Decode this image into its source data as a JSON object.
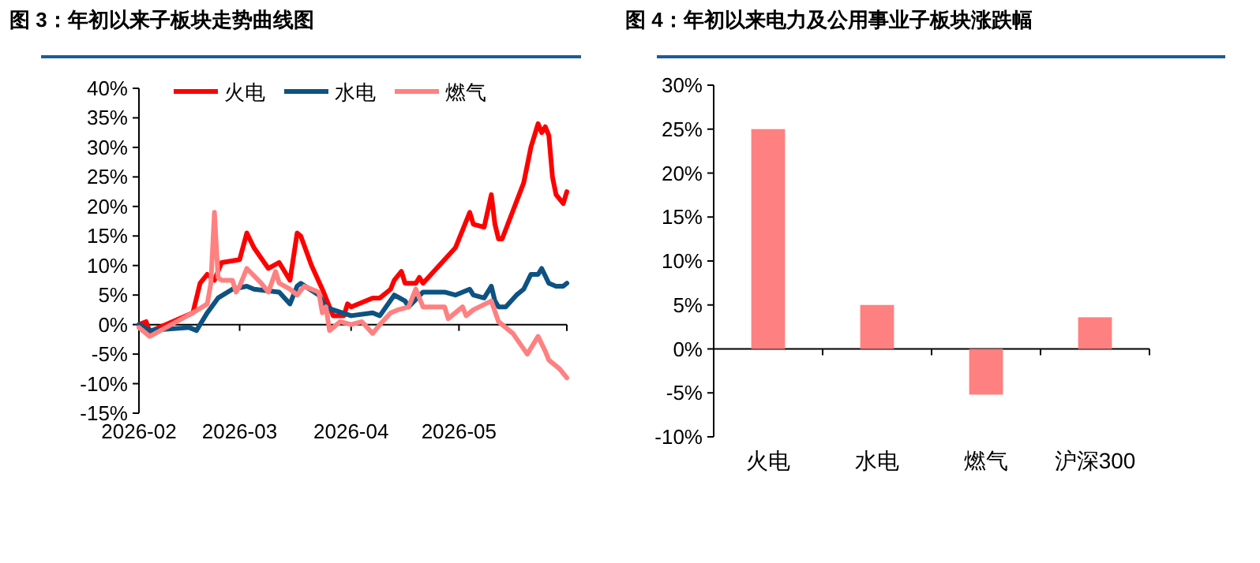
{
  "chart_data": [
    {
      "type": "line",
      "title": "图 3：年初以来子板块走势曲线图",
      "legend": "top",
      "xlim": [
        "2026-02-01",
        "2026-05-31"
      ],
      "xticks": [
        {
          "value": "2026-02-01",
          "label": "2026-02"
        },
        {
          "value": "2026-03-01",
          "label": "2026-03"
        },
        {
          "value": "2026-04-01",
          "label": "2026-04"
        },
        {
          "value": "2026-05-01",
          "label": "2026-05"
        },
        {
          "value": "2026-05-31",
          "label": null
        }
      ],
      "ylim": [
        -15,
        40
      ],
      "yticks": [
        {
          "value": -15,
          "label": "-15%"
        },
        {
          "value": -10,
          "label": "-10%"
        },
        {
          "value": -5,
          "label": "-5%"
        },
        {
          "value": 0,
          "label": "0%"
        },
        {
          "value": 5,
          "label": "5%"
        },
        {
          "value": 10,
          "label": "10%"
        },
        {
          "value": 15,
          "label": "15%"
        },
        {
          "value": 20,
          "label": "20%"
        },
        {
          "value": 25,
          "label": "25%"
        },
        {
          "value": 30,
          "label": "30%"
        },
        {
          "value": 35,
          "label": "35%"
        },
        {
          "value": 40,
          "label": "40%"
        }
      ],
      "series": [
        {
          "name": "火电",
          "color": "#ff0000",
          "x": [
            "2026-02-01",
            "2026-02-03",
            "2026-02-04",
            "2026-02-16",
            "2026-02-18",
            "2026-02-20",
            "2026-02-22",
            "2026-02-24",
            "2026-03-01",
            "2026-03-03",
            "2026-03-05",
            "2026-03-09",
            "2026-03-12",
            "2026-03-15",
            "2026-03-17",
            "2026-03-18",
            "2026-03-21",
            "2026-03-24",
            "2026-03-27",
            "2026-03-30",
            "2026-03-31",
            "2026-04-01",
            "2026-04-07",
            "2026-04-09",
            "2026-04-12",
            "2026-04-13",
            "2026-04-15",
            "2026-04-16",
            "2026-04-19",
            "2026-04-20",
            "2026-04-21",
            "2026-04-27",
            "2026-04-30",
            "2026-05-02",
            "2026-05-04",
            "2026-05-05",
            "2026-05-08",
            "2026-05-10",
            "2026-05-11",
            "2026-05-12",
            "2026-05-13",
            "2026-05-19",
            "2026-05-21",
            "2026-05-23",
            "2026-05-24",
            "2026-05-25",
            "2026-05-26",
            "2026-05-27",
            "2026-05-28",
            "2026-05-30",
            "2026-05-31"
          ],
          "values": [
            0,
            0.5,
            -1.2,
            2,
            7,
            8.5,
            7.5,
            10.5,
            11,
            15.5,
            13,
            9.5,
            10.5,
            7.5,
            15.5,
            15,
            10,
            6,
            1.5,
            1.5,
            3.5,
            3,
            4.5,
            4.5,
            6,
            7.5,
            9,
            7,
            7,
            8,
            7,
            11,
            13,
            16,
            19,
            17,
            16.5,
            22,
            17,
            14.5,
            14.5,
            24,
            30,
            34,
            32.5,
            33.5,
            32,
            25,
            22,
            20.5,
            22.5
          ]
        },
        {
          "name": "水电",
          "color": "#0d5282",
          "x": [
            "2026-02-01",
            "2026-02-04",
            "2026-02-15",
            "2026-02-17",
            "2026-02-20",
            "2026-02-23",
            "2026-02-27",
            "2026-03-03",
            "2026-03-05",
            "2026-03-12",
            "2026-03-15",
            "2026-03-17",
            "2026-03-18",
            "2026-03-23",
            "2026-03-25",
            "2026-03-27",
            "2026-04-01",
            "2026-04-07",
            "2026-04-09",
            "2026-04-13",
            "2026-04-16",
            "2026-04-17",
            "2026-04-21",
            "2026-04-27",
            "2026-04-30",
            "2026-05-02",
            "2026-05-04",
            "2026-05-05",
            "2026-05-08",
            "2026-05-10",
            "2026-05-11",
            "2026-05-12",
            "2026-05-14",
            "2026-05-17",
            "2026-05-19",
            "2026-05-21",
            "2026-05-23",
            "2026-05-24",
            "2026-05-26",
            "2026-05-28",
            "2026-05-30",
            "2026-05-31"
          ],
          "values": [
            0,
            -1,
            -0.5,
            -1,
            2,
            4.5,
            6,
            6.5,
            6,
            5.5,
            3.5,
            6.5,
            7,
            5,
            3,
            2.5,
            1.5,
            2,
            1.5,
            5,
            4,
            3,
            5.5,
            5.5,
            5,
            5.5,
            6,
            5,
            4.5,
            6.5,
            4,
            3,
            3,
            5,
            6,
            8.5,
            8.5,
            9.5,
            7,
            6.5,
            6.5,
            7
          ]
        },
        {
          "name": "燃气",
          "color": "#ff8080",
          "x": [
            "2026-02-01",
            "2026-02-04",
            "2026-02-16",
            "2026-02-20",
            "2026-02-21",
            "2026-02-22",
            "2026-02-23",
            "2026-02-24",
            "2026-02-27",
            "2026-02-28",
            "2026-03-01",
            "2026-03-03",
            "2026-03-07",
            "2026-03-09",
            "2026-03-11",
            "2026-03-12",
            "2026-03-15",
            "2026-03-17",
            "2026-03-19",
            "2026-03-23",
            "2026-03-24",
            "2026-03-25",
            "2026-03-26",
            "2026-03-29",
            "2026-04-01",
            "2026-04-04",
            "2026-04-07",
            "2026-04-09",
            "2026-04-12",
            "2026-04-14",
            "2026-04-17",
            "2026-04-19",
            "2026-04-21",
            "2026-04-27",
            "2026-04-28",
            "2026-05-02",
            "2026-05-03",
            "2026-05-05",
            "2026-05-10",
            "2026-05-12",
            "2026-05-16",
            "2026-05-20",
            "2026-05-23",
            "2026-05-25",
            "2026-05-26",
            "2026-05-29",
            "2026-05-31"
          ],
          "values": [
            -0.5,
            -2,
            2,
            3.5,
            7,
            19,
            8,
            7.5,
            7.5,
            5.5,
            6.5,
            9.5,
            7,
            5.5,
            9,
            7,
            6,
            5,
            6.5,
            5.5,
            2,
            3,
            -1,
            0.5,
            0,
            0.5,
            -1.5,
            0,
            2,
            2.5,
            3,
            6,
            3,
            3,
            1,
            3,
            1.5,
            2.5,
            4,
            0.5,
            -1.5,
            -5,
            -2,
            -4.5,
            -6,
            -7.5,
            -9
          ]
        }
      ]
    },
    {
      "type": "bar",
      "title": "图 4：年初以来电力及公用事业子板块涨跌幅",
      "categories": [
        "火电",
        "水电",
        "燃气",
        "沪深300"
      ],
      "values": [
        25,
        5,
        -5.2,
        3.6
      ],
      "color": "#ff8080",
      "ylim": [
        -10,
        30
      ],
      "yticks": [
        {
          "value": -10,
          "label": "-10%"
        },
        {
          "value": -5,
          "label": "-5%"
        },
        {
          "value": 0,
          "label": "0%"
        },
        {
          "value": 5,
          "label": "5%"
        },
        {
          "value": 10,
          "label": "10%"
        },
        {
          "value": 15,
          "label": "15%"
        },
        {
          "value": 20,
          "label": "20%"
        },
        {
          "value": 25,
          "label": "25%"
        },
        {
          "value": 30,
          "label": "30%"
        }
      ]
    }
  ]
}
